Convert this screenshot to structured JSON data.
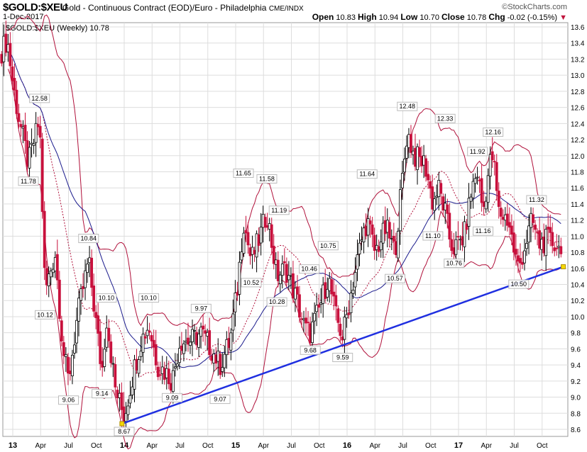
{
  "header": {
    "symbol": "$GOLD:$XEU",
    "description": "Gold - Continuous Contract (EOD)/Euro - Philadelphia",
    "exchange": "CME/INDX",
    "brand": "©StockCharts.com",
    "date": "1-Dec-2017",
    "open_label": "Open",
    "open": "10.83",
    "high_label": "High",
    "high": "10.94",
    "low_label": "Low",
    "low": "10.70",
    "close_label": "Close",
    "close": "10.78",
    "chg_label": "Chg",
    "chg": "-0.02 (-0.15%)",
    "chg_arrow": "▼"
  },
  "legend": "$GOLD:$XEU (Weekly) 10.78",
  "colors": {
    "up": "#000000",
    "down": "#c8103c",
    "bands": "#b0103a",
    "ma": "#1a1a8c",
    "trend": "#1f2fe0",
    "grid": "#dddddd"
  },
  "chart_data": {
    "type": "candlestick",
    "title": "$GOLD:$XEU (Weekly)",
    "ylim": [
      8.6,
      13.6
    ],
    "yticks": [
      "8.6",
      "8.8",
      "9.0",
      "9.2",
      "9.4",
      "9.6",
      "9.8",
      "10.0",
      "10.2",
      "10.4",
      "10.6",
      "10.8",
      "11.0",
      "11.2",
      "11.4",
      "11.6",
      "11.8",
      "12.0",
      "12.2",
      "12.4",
      "12.6",
      "12.8",
      "13.0",
      "13.2",
      "13.4",
      "13.6"
    ],
    "xlim": [
      2012.88,
      2017.95
    ],
    "xticks": [
      {
        "t": 2013.0,
        "label": "13",
        "year": true
      },
      {
        "t": 2013.25,
        "label": "Apr"
      },
      {
        "t": 2013.5,
        "label": "Jul"
      },
      {
        "t": 2013.75,
        "label": "Oct"
      },
      {
        "t": 2014.0,
        "label": "14",
        "year": true
      },
      {
        "t": 2014.25,
        "label": "Apr"
      },
      {
        "t": 2014.5,
        "label": "Jul"
      },
      {
        "t": 2014.75,
        "label": "Oct"
      },
      {
        "t": 2015.0,
        "label": "15",
        "year": true
      },
      {
        "t": 2015.25,
        "label": "Apr"
      },
      {
        "t": 2015.5,
        "label": "Jul"
      },
      {
        "t": 2015.75,
        "label": "Oct"
      },
      {
        "t": 2016.0,
        "label": "16",
        "year": true
      },
      {
        "t": 2016.25,
        "label": "Apr"
      },
      {
        "t": 2016.5,
        "label": "Jul"
      },
      {
        "t": 2016.75,
        "label": "Oct"
      },
      {
        "t": 2017.0,
        "label": "17",
        "year": true
      },
      {
        "t": 2017.25,
        "label": "Apr"
      },
      {
        "t": 2017.5,
        "label": "Jul"
      },
      {
        "t": 2017.75,
        "label": "Oct"
      }
    ],
    "price_path": [
      [
        2012.9,
        13.3
      ],
      [
        2012.95,
        13.45
      ],
      [
        2013.0,
        12.9
      ],
      [
        2013.05,
        12.5
      ],
      [
        2013.14,
        11.9
      ],
      [
        2013.24,
        12.45
      ],
      [
        2013.29,
        10.3
      ],
      [
        2013.38,
        10.8
      ],
      [
        2013.45,
        9.6
      ],
      [
        2013.5,
        9.2
      ],
      [
        2013.58,
        10.0
      ],
      [
        2013.68,
        10.7
      ],
      [
        2013.74,
        10.0
      ],
      [
        2013.8,
        9.3
      ],
      [
        2013.84,
        10.0
      ],
      [
        2013.92,
        9.1
      ],
      [
        2014.0,
        8.75
      ],
      [
        2014.08,
        9.3
      ],
      [
        2014.15,
        9.7
      ],
      [
        2014.22,
        9.9
      ],
      [
        2014.3,
        9.4
      ],
      [
        2014.38,
        9.3
      ],
      [
        2014.43,
        9.2
      ],
      [
        2014.5,
        9.7
      ],
      [
        2014.6,
        9.7
      ],
      [
        2014.69,
        9.8
      ],
      [
        2014.78,
        9.6
      ],
      [
        2014.86,
        9.4
      ],
      [
        2014.95,
        9.7
      ],
      [
        2015.02,
        10.4
      ],
      [
        2015.07,
        11.2
      ],
      [
        2015.14,
        10.7
      ],
      [
        2015.22,
        11.0
      ],
      [
        2015.28,
        11.3
      ],
      [
        2015.37,
        10.5
      ],
      [
        2015.45,
        10.6
      ],
      [
        2015.55,
        10.2
      ],
      [
        2015.62,
        9.85
      ],
      [
        2015.67,
        9.8
      ],
      [
        2015.75,
        10.1
      ],
      [
        2015.83,
        10.5
      ],
      [
        2015.9,
        10.0
      ],
      [
        2015.96,
        9.75
      ],
      [
        2016.05,
        10.4
      ],
      [
        2016.12,
        10.9
      ],
      [
        2016.18,
        11.2
      ],
      [
        2016.25,
        10.8
      ],
      [
        2016.35,
        11.1
      ],
      [
        2016.43,
        10.8
      ],
      [
        2016.48,
        11.5
      ],
      [
        2016.54,
        12.3
      ],
      [
        2016.6,
        12.0
      ],
      [
        2016.7,
        11.9
      ],
      [
        2016.77,
        11.4
      ],
      [
        2016.82,
        11.6
      ],
      [
        2016.88,
        11.3
      ],
      [
        2016.93,
        10.9
      ],
      [
        2016.97,
        10.85
      ],
      [
        2017.05,
        11.0
      ],
      [
        2017.12,
        11.6
      ],
      [
        2017.17,
        11.8
      ],
      [
        2017.22,
        11.3
      ],
      [
        2017.28,
        11.9
      ],
      [
        2017.31,
        12.0
      ],
      [
        2017.36,
        11.3
      ],
      [
        2017.45,
        11.2
      ],
      [
        2017.5,
        10.8
      ],
      [
        2017.54,
        10.6
      ],
      [
        2017.6,
        10.9
      ],
      [
        2017.66,
        11.2
      ],
      [
        2017.72,
        10.9
      ],
      [
        2017.8,
        10.95
      ],
      [
        2017.88,
        10.9
      ],
      [
        2017.92,
        10.78
      ]
    ],
    "overlays": {
      "bollinger_period_weeks": 20,
      "bollinger_sd": 2,
      "moving_average_weeks": 40
    },
    "trendline": [
      [
        2013.98,
        8.67
      ],
      [
        2017.94,
        10.62
      ]
    ],
    "annotations": [
      {
        "t": 2013.24,
        "v": "12.58",
        "pos": "above"
      },
      {
        "t": 2013.14,
        "v": "11.78",
        "pos": "below"
      },
      {
        "t": 2013.68,
        "v": "10.84",
        "pos": "above"
      },
      {
        "t": 2013.29,
        "v": "10.12",
        "pos": "below"
      },
      {
        "t": 2013.84,
        "v": "10.10",
        "pos": "above"
      },
      {
        "t": 2013.5,
        "v": "9.06",
        "pos": "below"
      },
      {
        "t": 2013.8,
        "v": "9.14",
        "pos": "below"
      },
      {
        "t": 2014.0,
        "v": "8.67",
        "pos": "below"
      },
      {
        "t": 2014.22,
        "v": "10.10",
        "pos": "above"
      },
      {
        "t": 2014.43,
        "v": "9.09",
        "pos": "below"
      },
      {
        "t": 2014.69,
        "v": "9.97",
        "pos": "above"
      },
      {
        "t": 2014.86,
        "v": "9.07",
        "pos": "below"
      },
      {
        "t": 2015.07,
        "v": "11.65",
        "pos": "above"
      },
      {
        "t": 2015.28,
        "v": "11.58",
        "pos": "above"
      },
      {
        "t": 2015.39,
        "v": "11.19",
        "pos": "above"
      },
      {
        "t": 2015.14,
        "v": "10.52",
        "pos": "below"
      },
      {
        "t": 2015.37,
        "v": "10.28",
        "pos": "below"
      },
      {
        "t": 2015.66,
        "v": "10.46",
        "pos": "above"
      },
      {
        "t": 2015.83,
        "v": "10.75",
        "pos": "above"
      },
      {
        "t": 2015.67,
        "v": "9.68",
        "pos": "below"
      },
      {
        "t": 2015.96,
        "v": "9.59",
        "pos": "below"
      },
      {
        "t": 2016.18,
        "v": "11.64",
        "pos": "above"
      },
      {
        "t": 2016.43,
        "v": "10.57",
        "pos": "below"
      },
      {
        "t": 2016.54,
        "v": "12.48",
        "pos": "above"
      },
      {
        "t": 2016.88,
        "v": "12.33",
        "pos": "above"
      },
      {
        "t": 2016.77,
        "v": "11.10",
        "pos": "below"
      },
      {
        "t": 2016.96,
        "v": "10.76",
        "pos": "below"
      },
      {
        "t": 2017.17,
        "v": "11.92",
        "pos": "above"
      },
      {
        "t": 2017.31,
        "v": "12.16",
        "pos": "above"
      },
      {
        "t": 2017.22,
        "v": "11.16",
        "pos": "below"
      },
      {
        "t": 2017.7,
        "v": "11.32",
        "pos": "above"
      },
      {
        "t": 2017.54,
        "v": "10.50",
        "pos": "below"
      }
    ]
  }
}
